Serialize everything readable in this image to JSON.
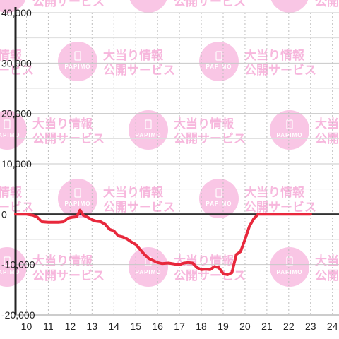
{
  "watermark": {
    "brand": "PAPIMO",
    "line1": "大当り情報",
    "line2": "公開サービス",
    "color": "#f9c6e5"
  },
  "chart_data": {
    "type": "line",
    "title": "",
    "xlabel": "",
    "ylabel": "",
    "xlim": [
      9.5,
      24.3
    ],
    "ylim": [
      -20000,
      40000
    ],
    "x_ticks": [
      "10",
      "11",
      "12",
      "13",
      "14",
      "15",
      "16",
      "17",
      "18",
      "19",
      "20",
      "21",
      "22",
      "23",
      "24"
    ],
    "y_ticks": [
      "40,000",
      "30,000",
      "20,000",
      "10,000",
      "0",
      "-10,000",
      "-20,000"
    ],
    "grid": true,
    "line_color": "#e8283c",
    "series": [
      {
        "x": [
          9.5,
          10.0,
          10.3,
          10.5,
          10.7,
          11.0,
          11.3,
          11.5,
          11.7,
          11.9,
          12.1,
          12.3,
          12.45,
          12.6,
          12.8,
          13.0,
          13.2,
          13.4,
          13.6,
          13.8,
          14.0,
          14.2,
          14.4,
          14.6,
          14.8,
          15.0,
          15.2,
          15.4,
          15.6,
          15.8,
          16.0,
          16.2,
          16.5,
          16.8,
          17.0,
          17.2,
          17.4,
          17.6,
          17.8,
          18.0,
          18.2,
          18.4,
          18.6,
          18.8,
          19.0,
          19.2,
          19.4,
          19.6,
          19.8,
          20.0,
          20.2,
          20.4,
          20.6,
          21.0,
          22.0,
          23.0
        ],
        "y": [
          0,
          0,
          -200,
          -600,
          -1500,
          -1600,
          -1600,
          -1600,
          -1500,
          -800,
          -600,
          -500,
          800,
          -200,
          -600,
          -1100,
          -1400,
          -1500,
          -2000,
          -3000,
          -3300,
          -4300,
          -4500,
          -4900,
          -5500,
          -6000,
          -7000,
          -8000,
          -8800,
          -9200,
          -9600,
          -9800,
          -9700,
          -9900,
          -10000,
          -9700,
          -9600,
          -9700,
          -10600,
          -11000,
          -10900,
          -11000,
          -10400,
          -10600,
          -11800,
          -12000,
          -11600,
          -8000,
          -7400,
          -5000,
          -2400,
          -900,
          0,
          0,
          0,
          0
        ]
      }
    ]
  }
}
